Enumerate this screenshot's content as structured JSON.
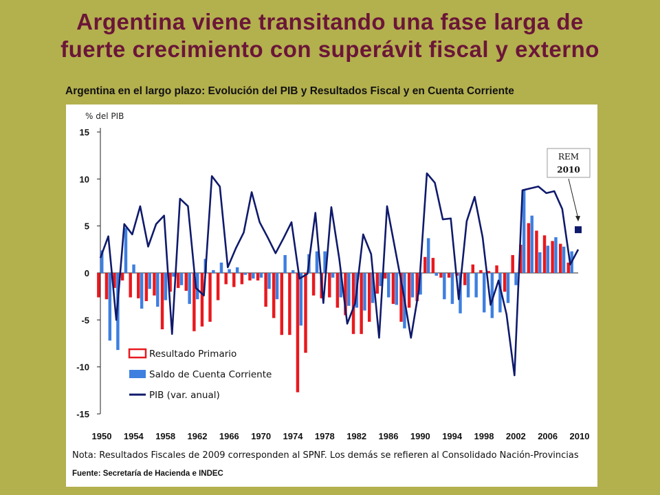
{
  "slide": {
    "title_line1": "Argentina viene transitando una fase larga de",
    "title_line2": "fuerte crecimiento con superávit fiscal y externo"
  },
  "chart_data": {
    "type": "bar",
    "title": "Argentina en el largo plazo: Evolución del PIB y Resultados Fiscal y en Cuenta Corriente",
    "ylabel": "% del PIB",
    "ylim": [
      -15,
      15
    ],
    "xlim": [
      1950,
      2010
    ],
    "yticks": [
      15,
      10,
      5,
      0,
      -5,
      -10,
      -15
    ],
    "xticks": [
      1950,
      1954,
      1958,
      1962,
      1966,
      1970,
      1974,
      1978,
      1982,
      1986,
      1990,
      1994,
      1998,
      2002,
      2006,
      2010
    ],
    "grid": false,
    "legend_position": "bottom-left",
    "years": [
      1950,
      1951,
      1952,
      1953,
      1954,
      1955,
      1956,
      1957,
      1958,
      1959,
      1960,
      1961,
      1962,
      1963,
      1964,
      1965,
      1966,
      1967,
      1968,
      1969,
      1970,
      1971,
      1972,
      1973,
      1974,
      1975,
      1976,
      1977,
      1978,
      1979,
      1980,
      1981,
      1982,
      1983,
      1984,
      1985,
      1986,
      1987,
      1988,
      1989,
      1990,
      1991,
      1992,
      1993,
      1994,
      1995,
      1996,
      1997,
      1998,
      1999,
      2000,
      2001,
      2002,
      2003,
      2004,
      2005,
      2006,
      2007,
      2008,
      2009
    ],
    "series": [
      {
        "name": "Resultado Primario",
        "type": "bar",
        "color": "#e8191e",
        "values": [
          -2.6,
          -2.8,
          -1.6,
          -0.8,
          -2.6,
          -2.7,
          -3.0,
          -2.4,
          -6.0,
          -2.0,
          -1.6,
          -1.9,
          -6.2,
          -5.7,
          -5.2,
          -2.9,
          -1.2,
          -1.5,
          -1.2,
          -0.8,
          -0.8,
          -3.6,
          -4.8,
          -6.6,
          -6.6,
          -12.7,
          -8.5,
          -2.4,
          -2.7,
          -2.6,
          -3.7,
          -4.5,
          -6.5,
          -6.5,
          -5.2,
          -2.2,
          -0.6,
          -3.3,
          -5.2,
          -3.7,
          -3.0,
          1.7,
          1.6,
          -0.5,
          -0.5,
          -0.3,
          -1.3,
          0.9,
          0.3,
          0.2,
          0.8,
          -2.0,
          1.9,
          3.0,
          5.3,
          4.5,
          4.0,
          3.4,
          3.1,
          1.1
        ]
      },
      {
        "name": "Saldo de Cuenta Corriente",
        "type": "bar",
        "color": "#3e7fe0",
        "values": [
          2.4,
          -7.2,
          -8.2,
          4.8,
          0.9,
          -3.8,
          -1.7,
          -3.6,
          -2.9,
          -0.4,
          -1.3,
          -3.3,
          -2.8,
          1.5,
          0.3,
          1.1,
          0.4,
          0.6,
          -0.2,
          -0.6,
          -0.5,
          -1.7,
          -2.8,
          1.9,
          0.3,
          -5.6,
          2.0,
          2.3,
          2.3,
          -0.5,
          -2.6,
          -3.5,
          -3.7,
          -4.0,
          -3.2,
          -1.4,
          -2.6,
          -3.4,
          -5.9,
          -2.6,
          -2.3,
          3.7,
          -0.3,
          -2.8,
          -3.3,
          -4.3,
          -2.6,
          -2.6,
          -4.2,
          -4.8,
          -4.2,
          -3.2,
          -1.3,
          8.8,
          6.1,
          2.2,
          2.9,
          3.8,
          2.8,
          2.3
        ]
      },
      {
        "name": "PIB (var. anual)",
        "type": "line",
        "color": "#0f1a6b",
        "values": [
          1.6,
          3.9,
          -5.0,
          5.2,
          4.1,
          7.1,
          2.8,
          5.2,
          6.1,
          -6.5,
          7.9,
          7.1,
          -1.6,
          -2.4,
          10.3,
          9.2,
          0.6,
          2.6,
          4.3,
          8.6,
          5.4,
          3.8,
          2.1,
          3.7,
          5.4,
          -0.6,
          -0.1,
          6.4,
          -3.2,
          7.0,
          1.5,
          -5.4,
          -3.2,
          4.1,
          2.0,
          -6.9,
          7.1,
          2.6,
          -1.9,
          -6.9,
          -1.8,
          10.6,
          9.6,
          5.7,
          5.8,
          -2.8,
          5.5,
          8.1,
          3.8,
          -3.4,
          -0.8,
          -4.4,
          -10.9,
          8.8,
          9.0,
          9.2,
          8.5,
          8.7,
          6.8,
          0.9
        ]
      }
    ],
    "forecast": {
      "label_line1": "REM",
      "label_line2": "2010",
      "year": 2010,
      "pib": 2.5,
      "marker_value": 4.6,
      "marker_color": "#0f1a6b"
    }
  },
  "footer": {
    "note": "Nota: Resultados Fiscales de 2009 corresponden al SPNF. Los demás se refieren al Consolidado Nación-Provincias",
    "source": "Fuente: Secretaría de Hacienda e INDEC"
  }
}
